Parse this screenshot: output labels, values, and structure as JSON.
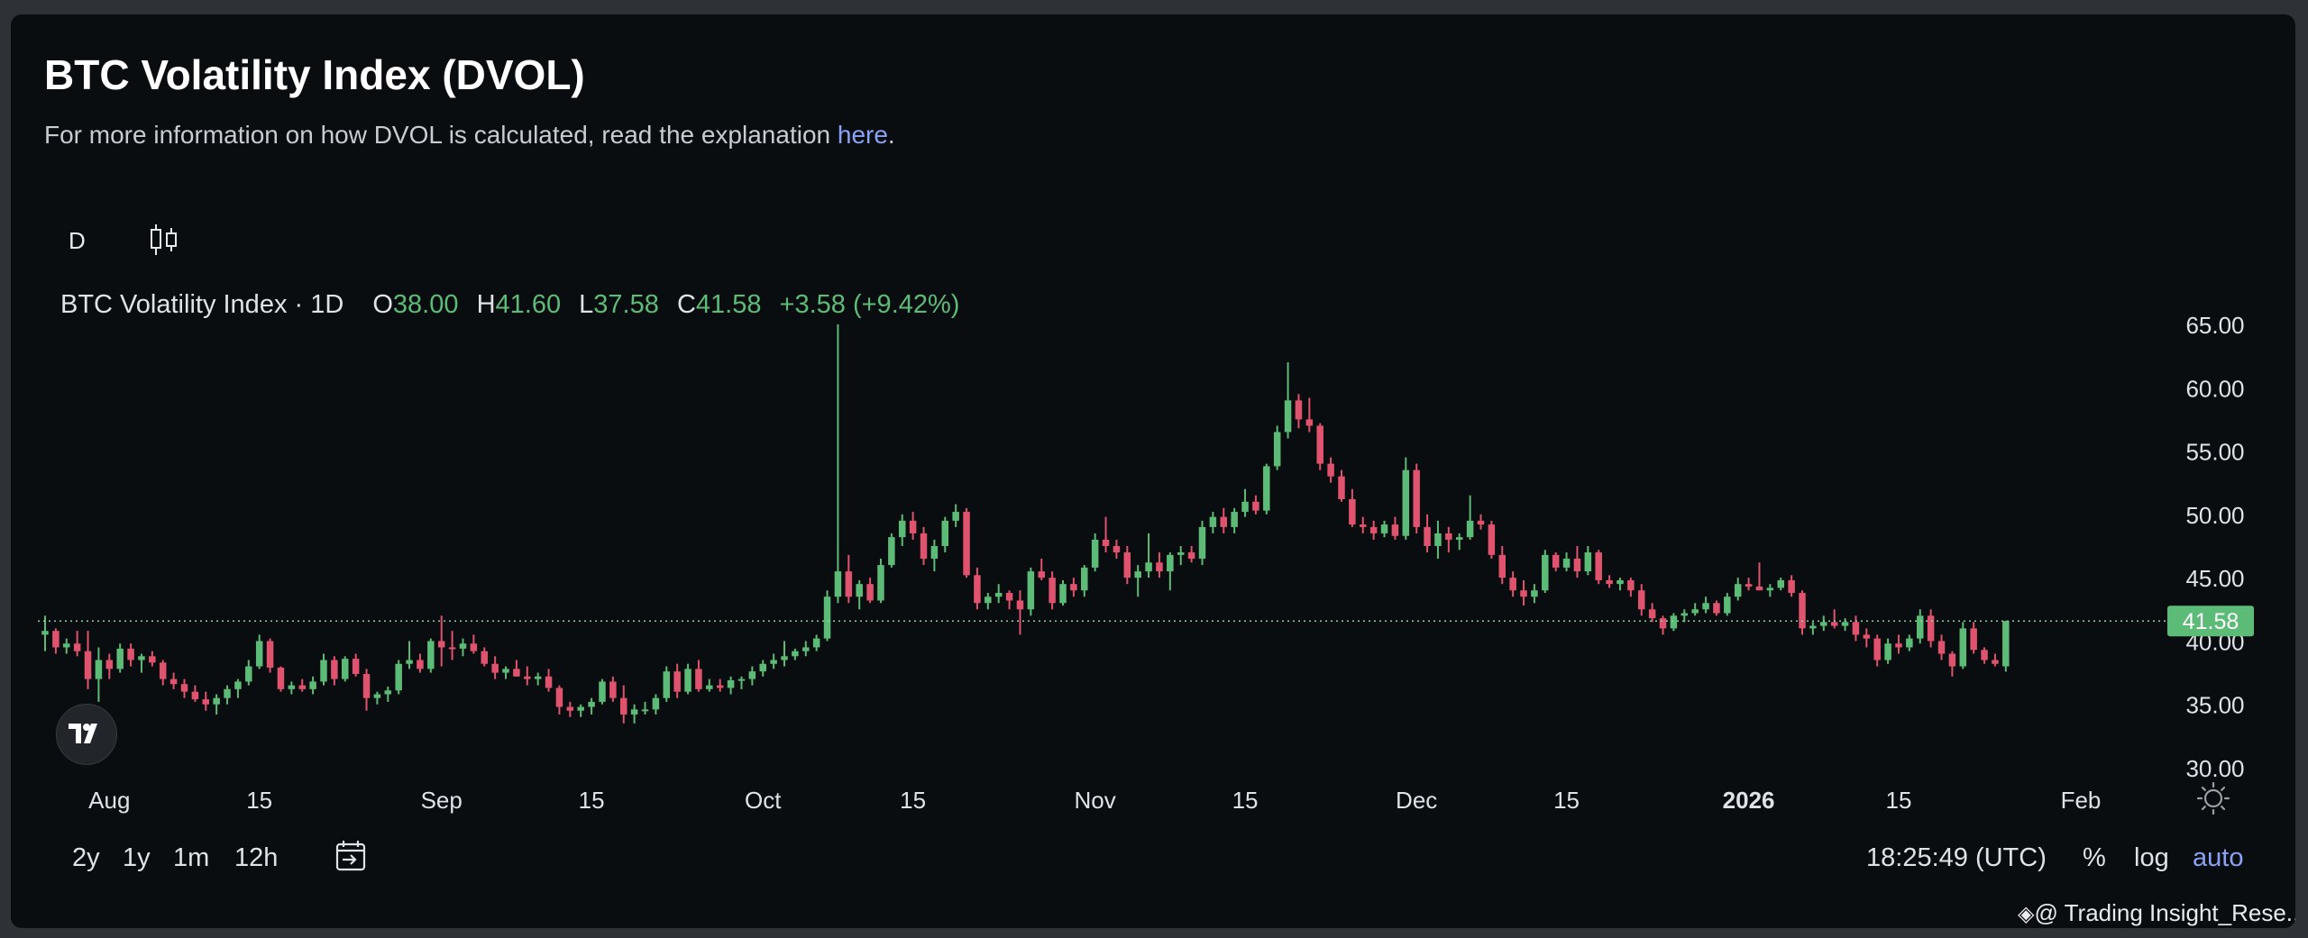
{
  "header": {
    "title": "BTC Volatility Index (DVOL)",
    "description": "For more information on how DVOL is calculated, read the explanation ",
    "link_text": "here",
    "link_suffix": "."
  },
  "toolbar": {
    "interval": "D",
    "chart_type_icon": "candlestick-icon"
  },
  "legend": {
    "symbol": "BTC Volatility Index · 1D",
    "o_label": "O",
    "o_value": "38.00",
    "h_label": "H",
    "h_value": "41.60",
    "l_label": "L",
    "l_value": "37.58",
    "c_label": "C",
    "c_value": "41.58",
    "change": "+3.58 (+9.42%)"
  },
  "colors": {
    "up": "#5dbb78",
    "down": "#e0536e",
    "axis_text": "#dfe2e6",
    "price_label_bg": "#5dbb78"
  },
  "ranges": [
    {
      "label": "2y"
    },
    {
      "label": "1y"
    },
    {
      "label": "1m"
    },
    {
      "label": "12h"
    }
  ],
  "footer": {
    "clock": "18:25:49 (UTC)",
    "percent": "%",
    "log": "log",
    "auto": "auto",
    "watermark": "@ Trading Insight_Rese..."
  },
  "chart_data": {
    "type": "candlestick",
    "title": "BTC Volatility Index · 1D",
    "y_axis_side": "right",
    "ylim": [
      30,
      65.5
    ],
    "y_ticks": [
      30,
      35,
      40,
      45,
      50,
      55,
      60,
      65
    ],
    "y_tick_labels": [
      "30.00",
      "35.00",
      "40.00",
      "45.00",
      "50.00",
      "55.00",
      "60.00",
      "65.00"
    ],
    "x_ticks": [
      {
        "label": "Aug",
        "date": "2025-08-01"
      },
      {
        "label": "15",
        "date": "2025-08-15"
      },
      {
        "label": "Sep",
        "date": "2025-09-01"
      },
      {
        "label": "15",
        "date": "2025-09-15"
      },
      {
        "label": "Oct",
        "date": "2025-10-01"
      },
      {
        "label": "15",
        "date": "2025-10-15"
      },
      {
        "label": "Nov",
        "date": "2025-11-01"
      },
      {
        "label": "15",
        "date": "2025-11-15"
      },
      {
        "label": "Dec",
        "date": "2025-12-01"
      },
      {
        "label": "15",
        "date": "2025-12-15"
      },
      {
        "label": "2026",
        "date": "2026-01-01",
        "bold": true
      },
      {
        "label": "15",
        "date": "2026-01-15"
      },
      {
        "label": "Feb",
        "date": "2026-02-01"
      }
    ],
    "last_price": 41.58,
    "last_price_label": "41.58",
    "candles": [
      [
        "2025-07-26",
        40.5,
        42.0,
        39.2,
        40.8
      ],
      [
        "2025-07-27",
        40.8,
        41.0,
        39.0,
        39.5
      ],
      [
        "2025-07-28",
        39.5,
        40.2,
        39.0,
        39.8
      ],
      [
        "2025-07-29",
        39.8,
        40.8,
        38.8,
        39.2
      ],
      [
        "2025-07-30",
        39.2,
        40.8,
        36.2,
        37.0
      ],
      [
        "2025-07-31",
        37.0,
        39.5,
        35.2,
        38.5
      ],
      [
        "2025-08-01",
        38.5,
        39.0,
        37.0,
        37.8
      ],
      [
        "2025-08-02",
        37.8,
        39.8,
        37.5,
        39.4
      ],
      [
        "2025-08-03",
        39.4,
        39.8,
        38.0,
        38.5
      ],
      [
        "2025-08-04",
        38.5,
        39.0,
        37.5,
        38.8
      ],
      [
        "2025-08-05",
        38.8,
        39.2,
        38.0,
        38.3
      ],
      [
        "2025-08-06",
        38.3,
        38.5,
        36.5,
        37.0
      ],
      [
        "2025-08-07",
        37.0,
        37.5,
        36.2,
        36.6
      ],
      [
        "2025-08-08",
        36.6,
        37.0,
        35.5,
        36.0
      ],
      [
        "2025-08-09",
        36.0,
        36.5,
        35.2,
        35.4
      ],
      [
        "2025-08-10",
        35.4,
        36.0,
        34.5,
        35.0
      ],
      [
        "2025-08-11",
        35.0,
        35.8,
        34.2,
        35.5
      ],
      [
        "2025-08-12",
        35.5,
        36.5,
        35.0,
        36.2
      ],
      [
        "2025-08-13",
        36.2,
        37.0,
        35.5,
        36.8
      ],
      [
        "2025-08-14",
        36.8,
        38.5,
        36.5,
        38.0
      ],
      [
        "2025-08-15",
        38.0,
        40.5,
        37.8,
        40.0
      ],
      [
        "2025-08-16",
        40.0,
        40.2,
        37.5,
        37.9
      ],
      [
        "2025-08-17",
        37.9,
        38.0,
        36.0,
        36.2
      ],
      [
        "2025-08-18",
        36.2,
        36.8,
        35.8,
        36.5
      ],
      [
        "2025-08-19",
        36.5,
        37.0,
        36.0,
        36.2
      ],
      [
        "2025-08-20",
        36.2,
        37.2,
        35.8,
        36.8
      ],
      [
        "2025-08-21",
        36.8,
        39.0,
        36.5,
        38.5
      ],
      [
        "2025-08-22",
        38.5,
        38.8,
        36.5,
        37.0
      ],
      [
        "2025-08-23",
        37.0,
        38.8,
        36.8,
        38.6
      ],
      [
        "2025-08-24",
        38.6,
        39.0,
        37.2,
        37.4
      ],
      [
        "2025-08-25",
        37.4,
        37.8,
        34.5,
        35.5
      ],
      [
        "2025-08-26",
        35.5,
        36.0,
        35.0,
        35.8
      ],
      [
        "2025-08-27",
        35.8,
        36.4,
        35.2,
        36.1
      ],
      [
        "2025-08-28",
        36.1,
        38.5,
        35.8,
        38.2
      ],
      [
        "2025-08-29",
        38.2,
        40.0,
        37.8,
        38.5
      ],
      [
        "2025-08-30",
        38.5,
        39.0,
        37.5,
        37.8
      ],
      [
        "2025-08-31",
        37.8,
        40.2,
        37.5,
        40.0
      ],
      [
        "2025-09-01",
        40.0,
        42.0,
        38.0,
        39.5
      ],
      [
        "2025-09-02",
        39.5,
        40.8,
        38.5,
        39.4
      ],
      [
        "2025-09-03",
        39.4,
        40.2,
        38.8,
        39.8
      ],
      [
        "2025-09-04",
        39.8,
        40.5,
        39.0,
        39.2
      ],
      [
        "2025-09-05",
        39.2,
        39.5,
        38.0,
        38.2
      ],
      [
        "2025-09-06",
        38.2,
        38.8,
        37.0,
        37.5
      ],
      [
        "2025-09-07",
        37.5,
        38.0,
        37.0,
        37.8
      ],
      [
        "2025-09-08",
        37.8,
        38.5,
        37.2,
        37.2
      ],
      [
        "2025-09-09",
        37.2,
        38.0,
        36.5,
        37.0
      ],
      [
        "2025-09-10",
        37.0,
        37.5,
        36.5,
        37.2
      ],
      [
        "2025-09-11",
        37.2,
        37.8,
        36.0,
        36.3
      ],
      [
        "2025-09-12",
        36.3,
        36.5,
        34.2,
        34.8
      ],
      [
        "2025-09-13",
        34.8,
        35.2,
        34.0,
        34.5
      ],
      [
        "2025-09-14",
        34.5,
        35.0,
        34.0,
        34.8
      ],
      [
        "2025-09-15",
        34.8,
        35.5,
        34.2,
        35.2
      ],
      [
        "2025-09-16",
        35.2,
        37.0,
        35.0,
        36.8
      ],
      [
        "2025-09-17",
        36.8,
        37.2,
        35.2,
        35.5
      ],
      [
        "2025-09-18",
        35.5,
        36.5,
        33.5,
        34.2
      ],
      [
        "2025-09-19",
        34.2,
        35.0,
        33.5,
        34.6
      ],
      [
        "2025-09-20",
        34.6,
        35.2,
        34.2,
        34.6
      ],
      [
        "2025-09-21",
        34.6,
        35.8,
        34.2,
        35.5
      ],
      [
        "2025-09-22",
        35.5,
        38.0,
        35.2,
        37.6
      ],
      [
        "2025-09-23",
        37.6,
        38.2,
        35.5,
        36.0
      ],
      [
        "2025-09-24",
        36.0,
        38.2,
        35.8,
        37.8
      ],
      [
        "2025-09-25",
        37.8,
        38.5,
        36.0,
        36.2
      ],
      [
        "2025-09-26",
        36.2,
        37.0,
        36.0,
        36.5
      ],
      [
        "2025-09-27",
        36.5,
        37.0,
        36.0,
        36.3
      ],
      [
        "2025-09-28",
        36.3,
        37.2,
        35.8,
        36.9
      ],
      [
        "2025-09-29",
        36.9,
        37.2,
        36.2,
        37.0
      ],
      [
        "2025-09-30",
        37.0,
        38.0,
        36.5,
        37.6
      ],
      [
        "2025-10-01",
        37.6,
        38.5,
        37.2,
        38.2
      ],
      [
        "2025-10-02",
        38.2,
        39.0,
        37.8,
        38.5
      ],
      [
        "2025-10-03",
        38.5,
        40.0,
        38.0,
        38.8
      ],
      [
        "2025-10-04",
        38.8,
        39.4,
        38.5,
        39.2
      ],
      [
        "2025-10-05",
        39.2,
        40.0,
        38.8,
        39.5
      ],
      [
        "2025-10-06",
        39.5,
        40.5,
        39.2,
        40.2
      ],
      [
        "2025-10-07",
        40.2,
        44.0,
        40.0,
        43.5
      ],
      [
        "2025-10-08",
        43.5,
        65.0,
        43.0,
        45.5
      ],
      [
        "2025-10-09",
        45.5,
        46.8,
        43.0,
        43.5
      ],
      [
        "2025-10-10",
        43.5,
        44.8,
        42.5,
        44.5
      ],
      [
        "2025-10-11",
        44.5,
        45.0,
        43.0,
        43.2
      ],
      [
        "2025-10-12",
        43.2,
        46.5,
        43.0,
        46.0
      ],
      [
        "2025-10-13",
        46.0,
        48.5,
        45.8,
        48.2
      ],
      [
        "2025-10-14",
        48.2,
        50.0,
        47.5,
        49.5
      ],
      [
        "2025-10-15",
        49.5,
        50.2,
        48.0,
        48.5
      ],
      [
        "2025-10-16",
        48.5,
        49.0,
        46.0,
        46.5
      ],
      [
        "2025-10-17",
        46.5,
        48.0,
        45.5,
        47.5
      ],
      [
        "2025-10-18",
        47.5,
        49.8,
        47.0,
        49.5
      ],
      [
        "2025-10-19",
        49.5,
        50.8,
        49.0,
        50.2
      ],
      [
        "2025-10-20",
        50.2,
        50.5,
        45.0,
        45.2
      ],
      [
        "2025-10-21",
        45.2,
        45.8,
        42.5,
        43.0
      ],
      [
        "2025-10-22",
        43.0,
        43.8,
        42.5,
        43.5
      ],
      [
        "2025-10-23",
        43.5,
        44.5,
        43.0,
        43.8
      ],
      [
        "2025-10-24",
        43.8,
        44.0,
        42.5,
        43.2
      ],
      [
        "2025-10-25",
        43.2,
        44.0,
        40.5,
        42.5
      ],
      [
        "2025-10-26",
        42.5,
        45.8,
        42.0,
        45.5
      ],
      [
        "2025-10-27",
        45.5,
        46.5,
        44.8,
        45.0
      ],
      [
        "2025-10-28",
        45.0,
        45.5,
        42.5,
        43.0
      ],
      [
        "2025-10-29",
        43.0,
        44.8,
        42.8,
        44.5
      ],
      [
        "2025-10-30",
        44.5,
        45.0,
        43.5,
        44.0
      ],
      [
        "2025-10-31",
        44.0,
        46.0,
        43.5,
        45.8
      ],
      [
        "2025-11-01",
        45.8,
        48.5,
        45.5,
        48.0
      ],
      [
        "2025-11-02",
        48.0,
        49.8,
        47.0,
        47.5
      ],
      [
        "2025-11-03",
        47.5,
        48.0,
        46.5,
        47.0
      ],
      [
        "2025-11-04",
        47.0,
        47.5,
        44.5,
        45.0
      ],
      [
        "2025-11-05",
        45.0,
        46.0,
        43.5,
        45.5
      ],
      [
        "2025-11-06",
        45.5,
        48.5,
        45.0,
        46.2
      ],
      [
        "2025-11-07",
        46.2,
        47.0,
        45.0,
        45.5
      ],
      [
        "2025-11-08",
        45.5,
        47.0,
        44.0,
        46.8
      ],
      [
        "2025-11-09",
        46.8,
        47.5,
        46.0,
        47.0
      ],
      [
        "2025-11-10",
        47.0,
        47.5,
        46.2,
        46.5
      ],
      [
        "2025-11-11",
        46.5,
        49.5,
        46.0,
        49.0
      ],
      [
        "2025-11-12",
        49.0,
        50.2,
        48.5,
        49.8
      ],
      [
        "2025-11-13",
        49.8,
        50.5,
        48.5,
        49.0
      ],
      [
        "2025-11-14",
        49.0,
        50.5,
        48.5,
        50.2
      ],
      [
        "2025-11-15",
        50.2,
        52.0,
        49.8,
        51.0
      ],
      [
        "2025-11-16",
        51.0,
        51.5,
        50.0,
        50.3
      ],
      [
        "2025-11-17",
        50.3,
        54.0,
        50.0,
        53.8
      ],
      [
        "2025-11-18",
        53.8,
        57.0,
        53.5,
        56.5
      ],
      [
        "2025-11-19",
        56.5,
        62.0,
        56.0,
        59.0
      ],
      [
        "2025-11-20",
        59.0,
        59.5,
        56.8,
        57.5
      ],
      [
        "2025-11-21",
        57.5,
        59.2,
        56.5,
        57.0
      ],
      [
        "2025-11-22",
        57.0,
        57.2,
        53.5,
        54.0
      ],
      [
        "2025-11-23",
        54.0,
        54.5,
        52.5,
        53.0
      ],
      [
        "2025-11-24",
        53.0,
        53.5,
        51.0,
        51.2
      ],
      [
        "2025-11-25",
        51.2,
        52.0,
        49.0,
        49.2
      ],
      [
        "2025-11-26",
        49.2,
        49.8,
        48.5,
        49.0
      ],
      [
        "2025-11-27",
        49.0,
        49.5,
        48.0,
        48.5
      ],
      [
        "2025-11-28",
        48.5,
        49.5,
        48.2,
        49.2
      ],
      [
        "2025-11-29",
        49.2,
        49.8,
        48.0,
        48.3
      ],
      [
        "2025-11-30",
        48.3,
        54.5,
        48.0,
        53.5
      ],
      [
        "2025-12-01",
        53.5,
        54.0,
        48.5,
        49.0
      ],
      [
        "2025-12-02",
        49.0,
        50.0,
        47.0,
        47.5
      ],
      [
        "2025-12-03",
        47.5,
        49.5,
        46.5,
        48.5
      ],
      [
        "2025-12-04",
        48.5,
        49.0,
        47.0,
        48.0
      ],
      [
        "2025-12-05",
        48.0,
        48.5,
        47.2,
        48.2
      ],
      [
        "2025-12-06",
        48.2,
        51.5,
        48.0,
        49.5
      ],
      [
        "2025-12-07",
        49.5,
        50.0,
        48.8,
        49.2
      ],
      [
        "2025-12-08",
        49.2,
        49.5,
        46.5,
        46.8
      ],
      [
        "2025-12-09",
        46.8,
        47.5,
        44.5,
        45.0
      ],
      [
        "2025-12-10",
        45.0,
        45.5,
        43.5,
        44.0
      ],
      [
        "2025-12-11",
        44.0,
        44.8,
        42.8,
        43.5
      ],
      [
        "2025-12-12",
        43.5,
        44.5,
        43.0,
        44.0
      ],
      [
        "2025-12-13",
        44.0,
        47.2,
        43.8,
        46.8
      ],
      [
        "2025-12-14",
        46.8,
        47.0,
        45.5,
        45.8
      ],
      [
        "2025-12-15",
        45.8,
        47.0,
        45.5,
        46.5
      ],
      [
        "2025-12-16",
        46.5,
        47.5,
        45.0,
        45.5
      ],
      [
        "2025-12-17",
        45.5,
        47.5,
        45.2,
        47.0
      ],
      [
        "2025-12-18",
        47.0,
        47.2,
        44.5,
        44.8
      ],
      [
        "2025-12-19",
        44.8,
        45.2,
        44.2,
        44.5
      ],
      [
        "2025-12-20",
        44.5,
        45.0,
        44.0,
        44.8
      ],
      [
        "2025-12-21",
        44.8,
        45.0,
        43.5,
        44.0
      ],
      [
        "2025-12-22",
        44.0,
        44.5,
        42.0,
        42.5
      ],
      [
        "2025-12-23",
        42.5,
        43.0,
        41.5,
        41.8
      ],
      [
        "2025-12-24",
        41.8,
        42.0,
        40.5,
        41.0
      ],
      [
        "2025-12-25",
        41.0,
        42.2,
        40.8,
        42.0
      ],
      [
        "2025-12-26",
        42.0,
        42.5,
        41.5,
        42.2
      ],
      [
        "2025-12-27",
        42.2,
        43.0,
        42.0,
        42.5
      ],
      [
        "2025-12-28",
        42.5,
        43.5,
        42.2,
        43.0
      ],
      [
        "2025-12-29",
        43.0,
        43.2,
        42.0,
        42.2
      ],
      [
        "2025-12-30",
        42.2,
        43.8,
        42.0,
        43.5
      ],
      [
        "2025-12-31",
        43.5,
        45.0,
        43.2,
        44.5
      ],
      [
        "2026-01-01",
        44.5,
        45.0,
        44.0,
        44.3
      ],
      [
        "2026-01-02",
        44.3,
        46.2,
        44.0,
        44.0
      ],
      [
        "2026-01-03",
        44.0,
        44.5,
        43.5,
        44.2
      ],
      [
        "2026-01-04",
        44.2,
        45.0,
        44.0,
        44.8
      ],
      [
        "2026-01-05",
        44.8,
        45.2,
        43.5,
        43.8
      ],
      [
        "2026-01-06",
        43.8,
        44.0,
        40.5,
        41.0
      ],
      [
        "2026-01-07",
        41.0,
        41.5,
        40.5,
        41.2
      ],
      [
        "2026-01-08",
        41.2,
        42.0,
        40.8,
        41.5
      ],
      [
        "2026-01-09",
        41.5,
        42.5,
        41.0,
        41.2
      ],
      [
        "2026-01-10",
        41.2,
        41.8,
        40.8,
        41.5
      ],
      [
        "2026-01-11",
        41.5,
        42.0,
        40.0,
        40.5
      ],
      [
        "2026-01-12",
        40.5,
        41.0,
        39.5,
        40.2
      ],
      [
        "2026-01-13",
        40.2,
        40.5,
        38.0,
        38.5
      ],
      [
        "2026-01-14",
        38.5,
        40.2,
        38.2,
        39.8
      ],
      [
        "2026-01-15",
        39.8,
        40.5,
        39.0,
        39.5
      ],
      [
        "2026-01-16",
        39.5,
        40.5,
        39.2,
        40.2
      ],
      [
        "2026-01-17",
        40.2,
        42.5,
        39.8,
        42.0
      ],
      [
        "2026-01-18",
        42.0,
        42.5,
        39.5,
        40.0
      ],
      [
        "2026-01-19",
        40.0,
        40.5,
        38.5,
        39.0
      ],
      [
        "2026-01-20",
        39.0,
        39.2,
        37.2,
        38.0
      ],
      [
        "2026-01-21",
        38.0,
        41.5,
        37.8,
        41.0
      ],
      [
        "2026-01-22",
        41.0,
        41.5,
        39.0,
        39.3
      ],
      [
        "2026-01-23",
        39.3,
        39.5,
        38.2,
        38.5
      ],
      [
        "2026-01-24",
        38.5,
        39.0,
        38.0,
        38.2
      ],
      [
        "2026-01-25",
        38.0,
        41.6,
        37.58,
        41.58
      ]
    ]
  }
}
